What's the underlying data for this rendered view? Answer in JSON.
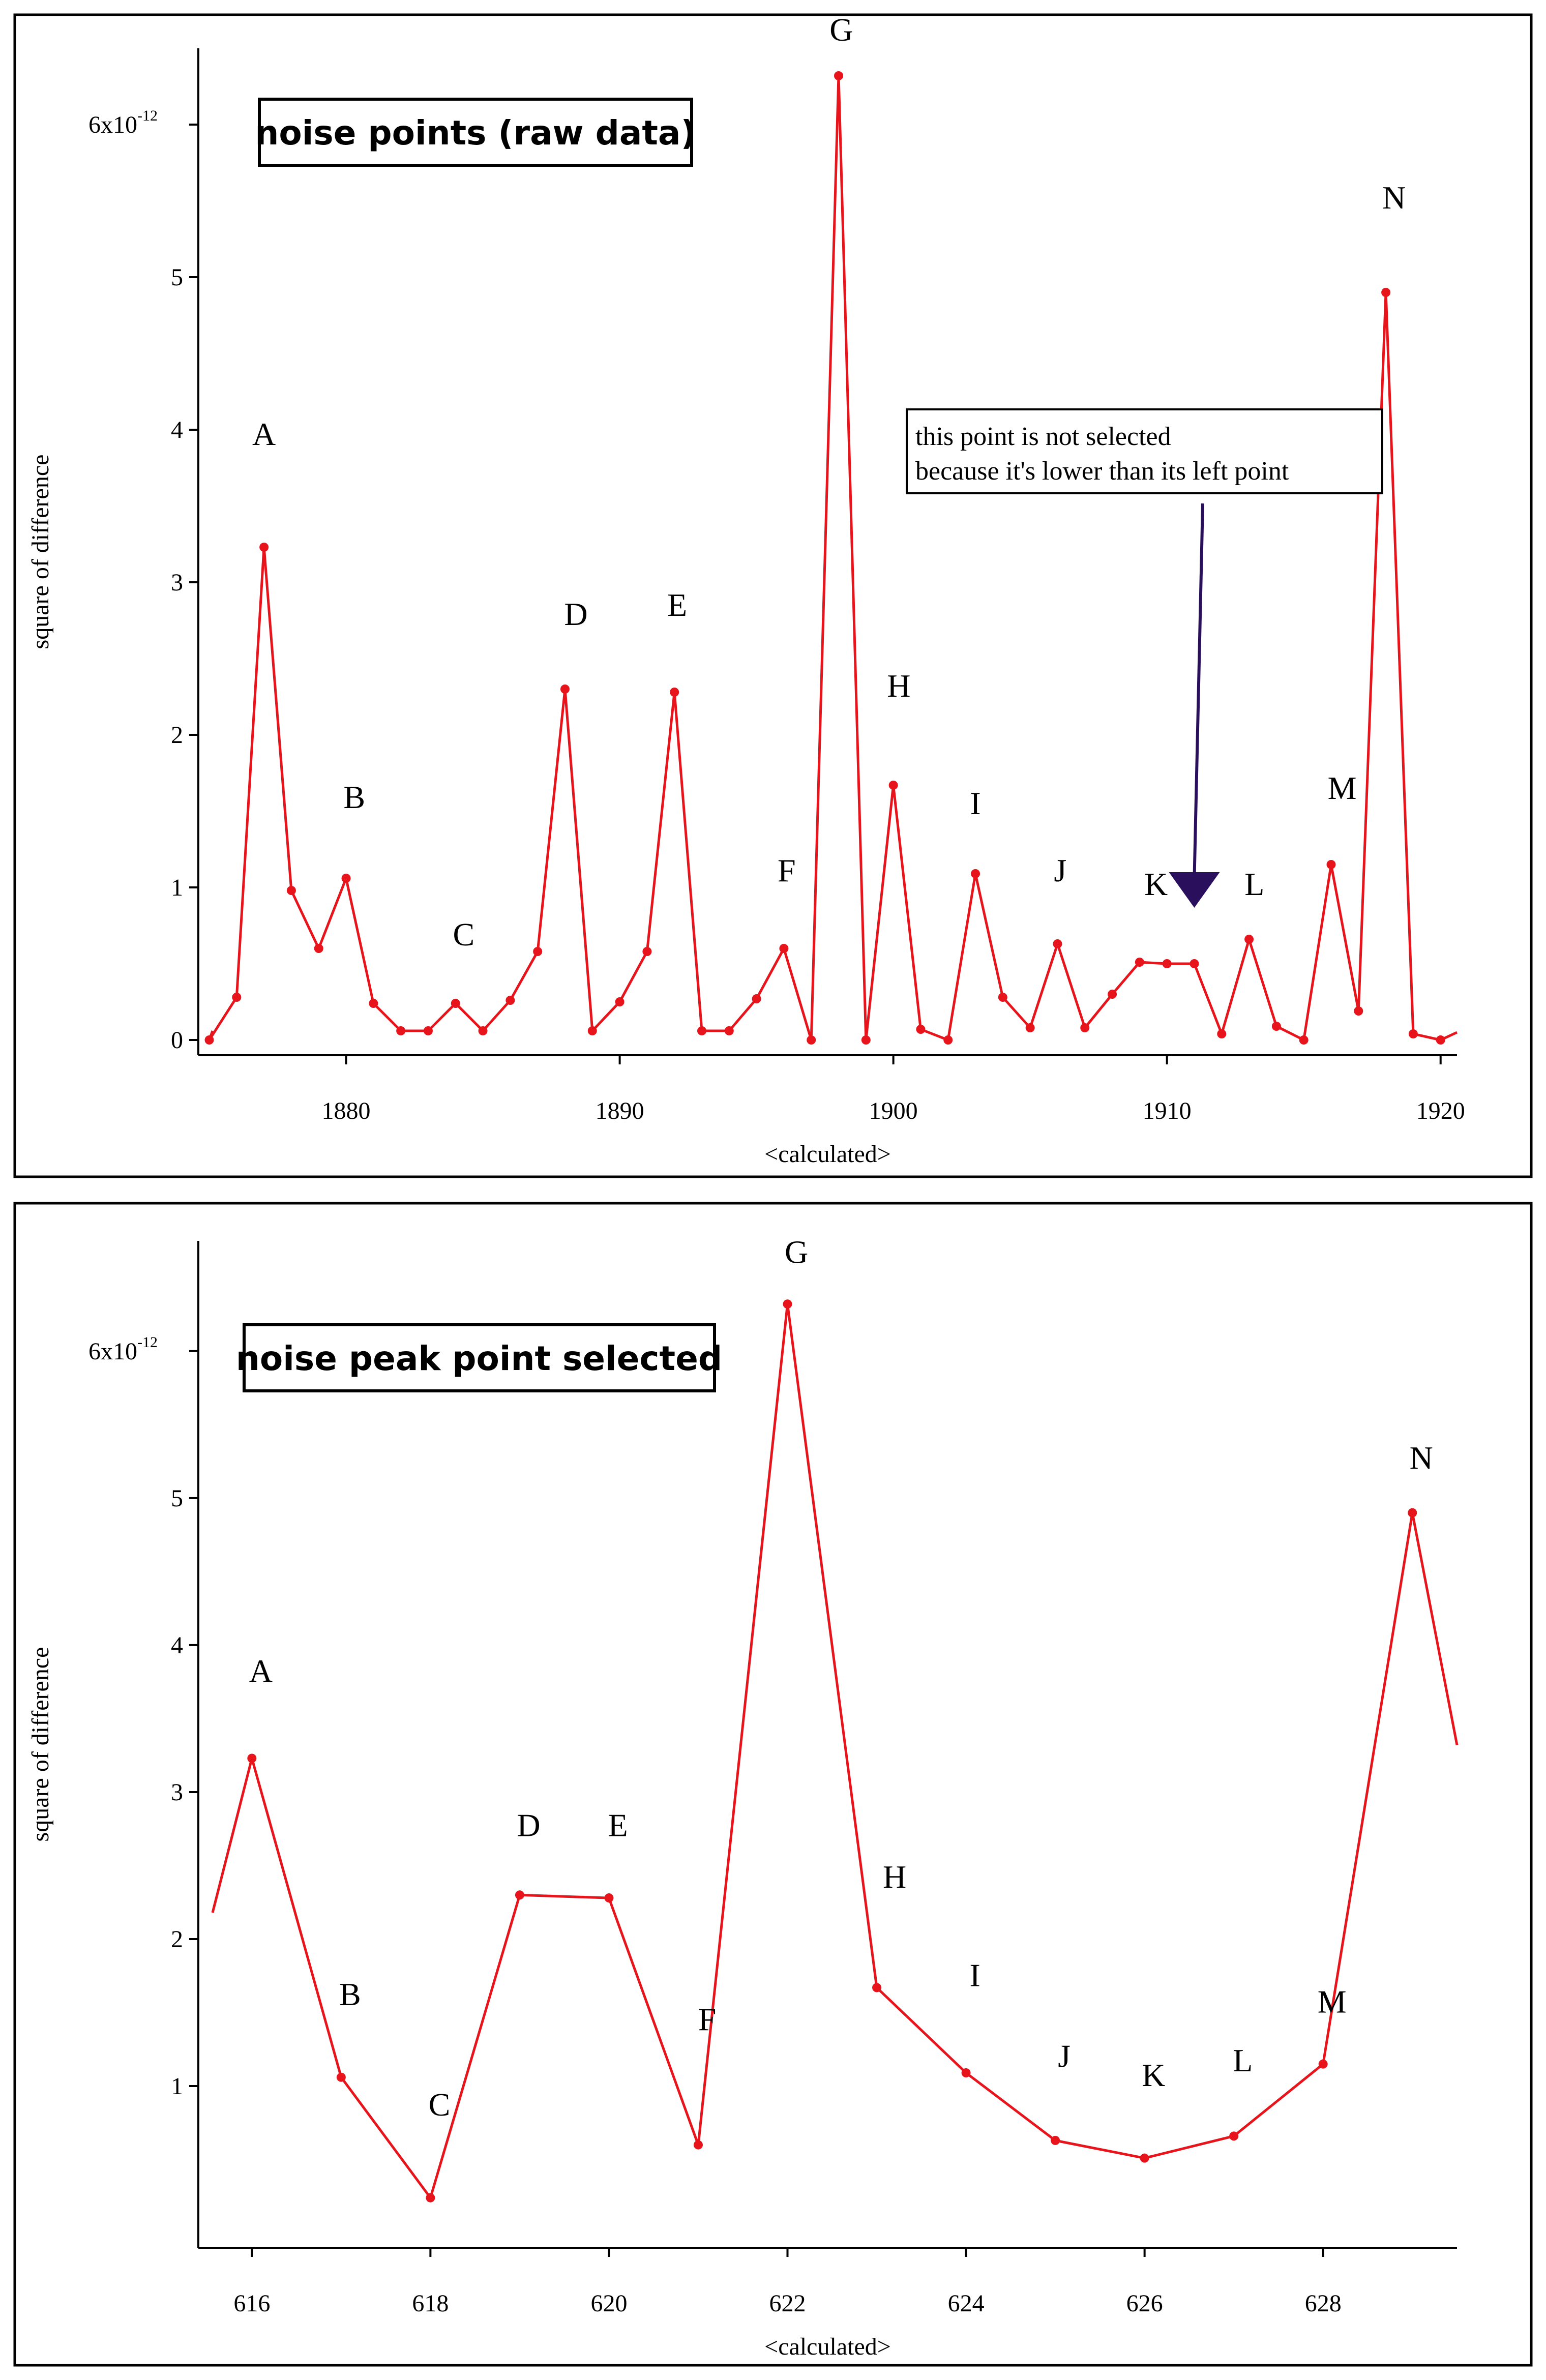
{
  "chart_data": [
    {
      "type": "line",
      "title": "noise points (raw data)",
      "xlabel": "<calculated>",
      "ylabel": "square of difference",
      "x_ticks": [
        1880,
        1890,
        1900,
        1910,
        1920
      ],
      "xlim": [
        1874.6,
        1920.6
      ],
      "ylim": [
        -0.1,
        6.5
      ],
      "y_ticks": [
        {
          "value": 0,
          "label": "0"
        },
        {
          "value": 1,
          "label": "1"
        },
        {
          "value": 2,
          "label": "2"
        },
        {
          "value": 3,
          "label": "3"
        },
        {
          "value": 4,
          "label": "4"
        },
        {
          "value": 5,
          "label": "5"
        },
        {
          "value": 6,
          "label": "6x10",
          "exponent": "-12"
        }
      ],
      "series": [
        {
          "color": "#e8141c",
          "x": [
            1875,
            1876,
            1877,
            1878,
            1879,
            1880,
            1881,
            1882,
            1883,
            1884,
            1885,
            1886,
            1887,
            1888,
            1889,
            1890,
            1891,
            1892,
            1893,
            1894,
            1895,
            1896,
            1897,
            1898,
            1899,
            1900,
            1901,
            1902,
            1903,
            1904,
            1905,
            1906,
            1907,
            1908,
            1909,
            1910,
            1911,
            1912,
            1913,
            1914,
            1915,
            1916,
            1917,
            1918,
            1919,
            1920
          ],
          "y": [
            0.0,
            0.28,
            3.23,
            0.98,
            0.6,
            1.06,
            0.24,
            0.06,
            0.06,
            0.24,
            0.06,
            0.26,
            0.58,
            2.3,
            0.06,
            0.25,
            0.58,
            2.28,
            0.06,
            0.06,
            0.27,
            0.6,
            0.0,
            6.32,
            0.0,
            1.67,
            0.07,
            0.0,
            1.09,
            0.28,
            0.08,
            0.63,
            0.08,
            0.3,
            0.51,
            0.5,
            0.5,
            0.04,
            0.66,
            0.09,
            0.0,
            1.15,
            0.19,
            4.9,
            0.04,
            0.0
          ]
        }
      ],
      "start_value": 0.06,
      "end_value": 0.05,
      "point_labels": [
        {
          "text": "A",
          "x": 1877,
          "y": 3.9
        },
        {
          "text": "B",
          "x": 1880.3,
          "y": 1.52
        },
        {
          "text": "C",
          "x": 1884.3,
          "y": 0.62
        },
        {
          "text": "D",
          "x": 1888.4,
          "y": 2.72
        },
        {
          "text": "E",
          "x": 1892.1,
          "y": 2.78
        },
        {
          "text": "F",
          "x": 1896.1,
          "y": 1.04
        },
        {
          "text": "G",
          "x": 1898.1,
          "y": 6.55
        },
        {
          "text": "H",
          "x": 1900.2,
          "y": 2.25
        },
        {
          "text": "I",
          "x": 1903,
          "y": 1.48
        },
        {
          "text": "J",
          "x": 1906.1,
          "y": 1.04
        },
        {
          "text": "K",
          "x": 1909.6,
          "y": 0.95
        },
        {
          "text": "L",
          "x": 1913.2,
          "y": 0.95
        },
        {
          "text": "M",
          "x": 1916.4,
          "y": 1.58
        },
        {
          "text": "N",
          "x": 1918.3,
          "y": 5.45
        }
      ],
      "annotation": {
        "lines": [
          "this point is not selected",
          "because it's lower than its left point"
        ],
        "points_to": {
          "x": 1911,
          "y": 0.9
        }
      }
    },
    {
      "type": "line",
      "title": "noise peak point selected",
      "xlabel": "<calculated>",
      "ylabel": "square of difference",
      "x_ticks": [
        616,
        618,
        620,
        622,
        624,
        626,
        628
      ],
      "xlim": [
        615.4,
        629.5
      ],
      "ylim": [
        -0.1,
        6.75
      ],
      "y_ticks": [
        {
          "value": 1,
          "label": "1"
        },
        {
          "value": 2,
          "label": "2"
        },
        {
          "value": 3,
          "label": "3"
        },
        {
          "value": 4,
          "label": "4"
        },
        {
          "value": 5,
          "label": "5"
        },
        {
          "value": 6,
          "label": "6x10",
          "exponent": "-12"
        }
      ],
      "series": [
        {
          "color": "#e8141c",
          "x": [
            616,
            617,
            618,
            619,
            620,
            621,
            622,
            623,
            624,
            625,
            626,
            627,
            628,
            629
          ],
          "y": [
            3.23,
            1.06,
            0.24,
            2.3,
            2.28,
            0.6,
            6.32,
            1.67,
            1.09,
            0.63,
            0.51,
            0.66,
            1.15,
            4.9
          ]
        }
      ],
      "start_value": 2.18,
      "end_value": 3.32,
      "point_labels": [
        {
          "text": "A",
          "x": 616.1,
          "y": 3.75
        },
        {
          "text": "B",
          "x": 617.1,
          "y": 1.55
        },
        {
          "text": "C",
          "x": 618.1,
          "y": 0.8
        },
        {
          "text": "D",
          "x": 619.1,
          "y": 2.7
        },
        {
          "text": "E",
          "x": 620.1,
          "y": 2.7
        },
        {
          "text": "F",
          "x": 621.1,
          "y": 1.38
        },
        {
          "text": "G",
          "x": 622.1,
          "y": 6.6
        },
        {
          "text": "H",
          "x": 623.2,
          "y": 2.35
        },
        {
          "text": "I",
          "x": 624.1,
          "y": 1.68
        },
        {
          "text": "J",
          "x": 625.1,
          "y": 1.13
        },
        {
          "text": "K",
          "x": 626.1,
          "y": 1.0
        },
        {
          "text": "L",
          "x": 627.1,
          "y": 1.1
        },
        {
          "text": "M",
          "x": 628.1,
          "y": 1.5
        },
        {
          "text": "N",
          "x": 629.1,
          "y": 5.2
        }
      ]
    }
  ]
}
